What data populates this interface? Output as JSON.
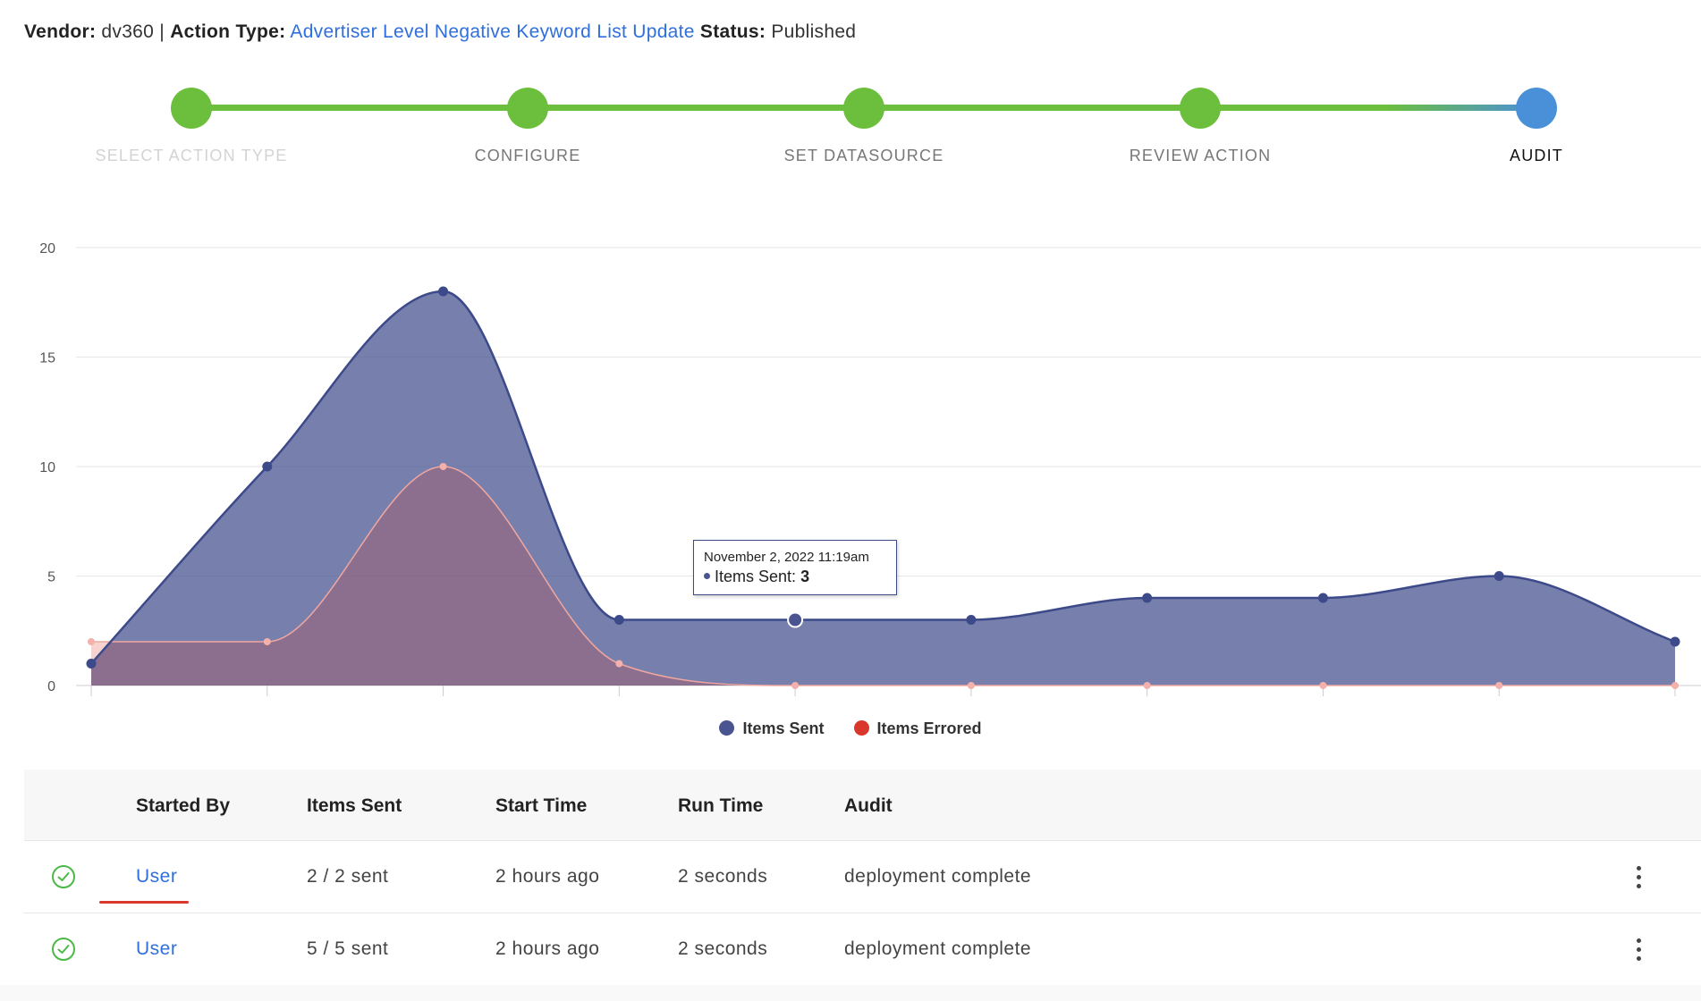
{
  "header": {
    "vendor_label": "Vendor:",
    "vendor_value": "dv360",
    "separator": "|",
    "action_type_label": "Action Type:",
    "action_type_value": "Advertiser Level Negative Keyword List Update",
    "status_label": "Status:",
    "status_value": "Published"
  },
  "stepper": {
    "steps": [
      {
        "label": "SELECT ACTION TYPE",
        "state": "disabled"
      },
      {
        "label": "CONFIGURE",
        "state": "done"
      },
      {
        "label": "SET DATASOURCE",
        "state": "done"
      },
      {
        "label": "REVIEW ACTION",
        "state": "done"
      },
      {
        "label": "AUDIT",
        "state": "active"
      }
    ],
    "colors": {
      "done": "#6cbf3c",
      "active": "#4a90d9"
    }
  },
  "chart_data": {
    "type": "area",
    "ylim": [
      0,
      20
    ],
    "yticks": [
      0,
      5,
      10,
      15,
      20
    ],
    "grid": true,
    "legend_position": "bottom-center",
    "series": [
      {
        "name": "Items Sent",
        "color": "#4a5490",
        "values": [
          1,
          10,
          18,
          3,
          3,
          3,
          4,
          4,
          5,
          2
        ]
      },
      {
        "name": "Items Errored",
        "color": "#d9372b",
        "values": [
          2,
          2,
          10,
          1,
          0,
          0,
          0,
          0,
          0,
          0
        ]
      }
    ],
    "tooltip": {
      "title": "November 2, 2022 11:19am",
      "series": "Items Sent:",
      "value": "3",
      "index": 4
    }
  },
  "table": {
    "headers": {
      "started_by": "Started By",
      "items_sent": "Items Sent",
      "start_time": "Start Time",
      "run_time": "Run Time",
      "audit": "Audit"
    },
    "rows": [
      {
        "started_by": "User",
        "items_sent": "2 / 2 sent",
        "start_time": "2 hours ago",
        "run_time": "2 seconds",
        "audit": "deployment complete"
      },
      {
        "started_by": "User",
        "items_sent": "5 / 5 sent",
        "start_time": "2 hours ago",
        "run_time": "2 seconds",
        "audit": "deployment complete"
      }
    ]
  }
}
